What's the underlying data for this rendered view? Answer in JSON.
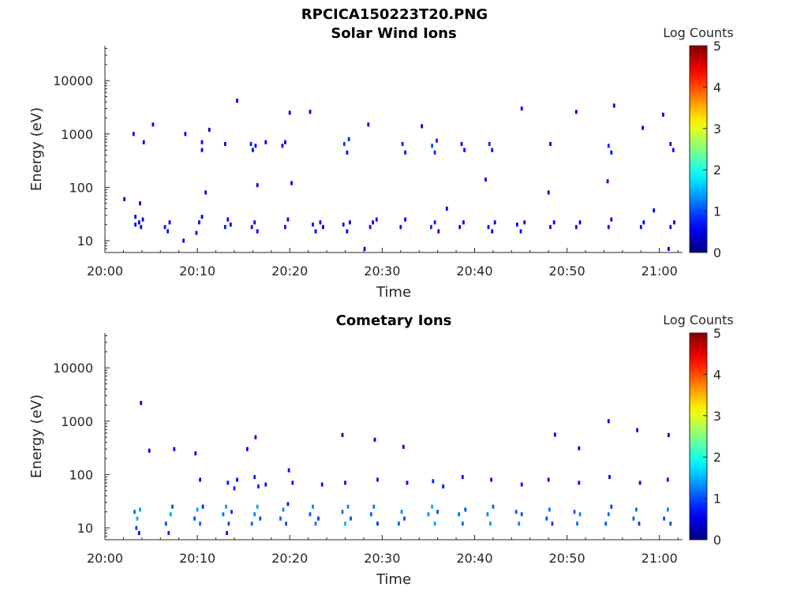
{
  "figure_title": "RPCICA150223T20.PNG",
  "colorbar": {
    "label": "Log Counts",
    "ticks": [
      "0",
      "1",
      "2",
      "3",
      "4",
      "5"
    ],
    "range": [
      0,
      5
    ],
    "colormap": "jet"
  },
  "chart_data": [
    {
      "type": "heatmap",
      "title": "Solar Wind Ions",
      "xlabel": "Time",
      "ylabel": "Energy (eV)",
      "x_ticks": [
        "20:00",
        "20:10",
        "20:20",
        "20:30",
        "20:40",
        "20:50",
        "21:00"
      ],
      "x_tick_minutes": [
        0,
        10,
        20,
        30,
        40,
        50,
        60
      ],
      "xlim_minutes": [
        0,
        62.5
      ],
      "y_ticks": [
        "10",
        "100",
        "1000",
        "10000"
      ],
      "y_tick_values": [
        10,
        100,
        1000,
        10000
      ],
      "yscale": "log",
      "ylim": [
        6,
        45000
      ],
      "grid": false,
      "points": [
        [
          3.3,
          28,
          0.6
        ],
        [
          3.3,
          20,
          0.6
        ],
        [
          3.7,
          22,
          0.6
        ],
        [
          3.9,
          18,
          0.6
        ],
        [
          4.1,
          25,
          0.5
        ],
        [
          6.5,
          18,
          0.7
        ],
        [
          6.8,
          15,
          0.7
        ],
        [
          7.0,
          22,
          0.6
        ],
        [
          8.5,
          10,
          0.6
        ],
        [
          9.9,
          14,
          0.7
        ],
        [
          10.2,
          22,
          0.6
        ],
        [
          10.5,
          28,
          0.6
        ],
        [
          13.0,
          18,
          0.7
        ],
        [
          13.3,
          25,
          0.6
        ],
        [
          13.6,
          20,
          0.6
        ],
        [
          15.9,
          18,
          0.7
        ],
        [
          16.2,
          22,
          0.6
        ],
        [
          16.5,
          15,
          0.6
        ],
        [
          19.5,
          18,
          0.7
        ],
        [
          19.8,
          25,
          0.6
        ],
        [
          22.5,
          20,
          0.7
        ],
        [
          22.8,
          15,
          0.6
        ],
        [
          23.3,
          22,
          0.6
        ],
        [
          23.6,
          18,
          0.6
        ],
        [
          25.8,
          20,
          0.7
        ],
        [
          26.2,
          15,
          0.6
        ],
        [
          26.5,
          22,
          0.6
        ],
        [
          28.7,
          18,
          0.7
        ],
        [
          29.0,
          22,
          0.6
        ],
        [
          29.4,
          25,
          0.6
        ],
        [
          32.0,
          18,
          0.7
        ],
        [
          32.5,
          25,
          0.6
        ],
        [
          35.3,
          18,
          0.8
        ],
        [
          35.7,
          22,
          0.7
        ],
        [
          36.1,
          15,
          0.6
        ],
        [
          38.4,
          18,
          0.7
        ],
        [
          38.8,
          22,
          0.6
        ],
        [
          41.5,
          18,
          0.7
        ],
        [
          41.9,
          15,
          0.6
        ],
        [
          42.2,
          22,
          0.6
        ],
        [
          44.6,
          20,
          0.7
        ],
        [
          45.0,
          15,
          0.6
        ],
        [
          45.4,
          22,
          0.6
        ],
        [
          48.2,
          18,
          0.7
        ],
        [
          48.6,
          22,
          0.6
        ],
        [
          51.0,
          18,
          0.7
        ],
        [
          51.4,
          22,
          0.6
        ],
        [
          54.5,
          18,
          0.7
        ],
        [
          54.8,
          25,
          0.6
        ],
        [
          58.0,
          18,
          0.7
        ],
        [
          58.3,
          22,
          0.6
        ],
        [
          61.2,
          18,
          0.7
        ],
        [
          61.6,
          22,
          0.6
        ],
        [
          10.5,
          700,
          0.6
        ],
        [
          10.5,
          500,
          0.6
        ],
        [
          13.0,
          650,
          0.6
        ],
        [
          15.8,
          650,
          0.8
        ],
        [
          16.3,
          600,
          0.7
        ],
        [
          16.0,
          500,
          0.6
        ],
        [
          19.2,
          600,
          0.7
        ],
        [
          19.5,
          700,
          0.6
        ],
        [
          25.9,
          650,
          0.9
        ],
        [
          26.2,
          450,
          0.7
        ],
        [
          26.4,
          800,
          0.8
        ],
        [
          32.2,
          650,
          0.8
        ],
        [
          32.5,
          450,
          0.7
        ],
        [
          35.4,
          600,
          1.0
        ],
        [
          35.7,
          450,
          0.8
        ],
        [
          35.9,
          750,
          0.8
        ],
        [
          38.6,
          650,
          0.7
        ],
        [
          38.9,
          500,
          0.6
        ],
        [
          41.6,
          650,
          0.8
        ],
        [
          41.9,
          500,
          0.6
        ],
        [
          48.2,
          650,
          0.6
        ],
        [
          54.5,
          600,
          0.8
        ],
        [
          54.8,
          450,
          0.6
        ],
        [
          61.2,
          650,
          0.7
        ],
        [
          61.5,
          500,
          0.6
        ],
        [
          3.1,
          1000,
          0.5
        ],
        [
          4.2,
          700,
          0.5
        ],
        [
          5.2,
          1500,
          0.5
        ],
        [
          8.7,
          1000,
          0.5
        ],
        [
          11.3,
          1200,
          0.5
        ],
        [
          14.3,
          4200,
          0.5
        ],
        [
          17.4,
          700,
          0.5
        ],
        [
          20.0,
          2500,
          0.5
        ],
        [
          22.2,
          2600,
          0.5
        ],
        [
          28.5,
          1500,
          0.5
        ],
        [
          34.3,
          1400,
          0.5
        ],
        [
          45.1,
          3000,
          0.5
        ],
        [
          51.0,
          2600,
          0.5
        ],
        [
          55.1,
          3400,
          0.5
        ],
        [
          58.2,
          1300,
          0.5
        ],
        [
          60.4,
          2300,
          0.5
        ],
        [
          2.1,
          60,
          0.5
        ],
        [
          3.8,
          50,
          0.5
        ],
        [
          10.9,
          80,
          0.5
        ],
        [
          16.5,
          110,
          0.5
        ],
        [
          20.2,
          120,
          0.5
        ],
        [
          37.0,
          40,
          0.5
        ],
        [
          41.2,
          140,
          0.5
        ],
        [
          48.0,
          80,
          0.5
        ],
        [
          54.4,
          130,
          0.5
        ],
        [
          59.4,
          37,
          0.5
        ],
        [
          28.1,
          7,
          0.5
        ],
        [
          61.0,
          7,
          0.5
        ]
      ]
    },
    {
      "type": "heatmap",
      "title": "Cometary Ions",
      "xlabel": "Time",
      "ylabel": "Energy (eV)",
      "x_ticks": [
        "20:00",
        "20:10",
        "20:20",
        "20:30",
        "20:40",
        "20:50",
        "21:00"
      ],
      "x_tick_minutes": [
        0,
        10,
        20,
        30,
        40,
        50,
        60
      ],
      "xlim_minutes": [
        0,
        62.5
      ],
      "y_ticks": [
        "10",
        "100",
        "1000",
        "10000"
      ],
      "y_tick_values": [
        10,
        100,
        1000,
        10000
      ],
      "yscale": "log",
      "ylim": [
        6,
        45000
      ],
      "grid": false,
      "points": [
        [
          3.2,
          20,
          1.2
        ],
        [
          3.5,
          15,
          1.5
        ],
        [
          3.8,
          22,
          1.4
        ],
        [
          3.4,
          10,
          0.9
        ],
        [
          3.7,
          8,
          0.7
        ],
        [
          6.6,
          12,
          1.0
        ],
        [
          6.9,
          8,
          0.8
        ],
        [
          7.1,
          18,
          1.4
        ],
        [
          7.3,
          25,
          1.0
        ],
        [
          9.7,
          15,
          1.0
        ],
        [
          10.0,
          22,
          1.4
        ],
        [
          10.3,
          12,
          1.1
        ],
        [
          10.6,
          25,
          0.8
        ],
        [
          12.8,
          18,
          1.2
        ],
        [
          13.1,
          25,
          1.4
        ],
        [
          13.4,
          12,
          1.0
        ],
        [
          13.7,
          20,
          0.9
        ],
        [
          13.2,
          8,
          0.7
        ],
        [
          15.9,
          12,
          1.1
        ],
        [
          16.2,
          18,
          1.3
        ],
        [
          16.5,
          25,
          1.4
        ],
        [
          16.8,
          15,
          1.0
        ],
        [
          19.0,
          15,
          1.1
        ],
        [
          19.3,
          22,
          1.3
        ],
        [
          19.6,
          12,
          1.0
        ],
        [
          19.8,
          28,
          0.8
        ],
        [
          22.2,
          18,
          1.1
        ],
        [
          22.5,
          25,
          1.3
        ],
        [
          22.8,
          12,
          1.2
        ],
        [
          23.1,
          15,
          0.9
        ],
        [
          25.7,
          20,
          1.2
        ],
        [
          26.0,
          12,
          1.5
        ],
        [
          26.3,
          25,
          1.3
        ],
        [
          26.6,
          15,
          1.0
        ],
        [
          28.8,
          18,
          1.1
        ],
        [
          29.1,
          25,
          1.2
        ],
        [
          29.5,
          12,
          0.9
        ],
        [
          31.8,
          12,
          1.1
        ],
        [
          32.1,
          20,
          1.3
        ],
        [
          32.4,
          15,
          1.0
        ],
        [
          35.0,
          18,
          1.3
        ],
        [
          35.4,
          25,
          1.5
        ],
        [
          35.7,
          12,
          1.4
        ],
        [
          36.0,
          20,
          1.0
        ],
        [
          38.3,
          18,
          1.2
        ],
        [
          38.7,
          12,
          1.1
        ],
        [
          39.0,
          22,
          1.0
        ],
        [
          41.4,
          18,
          1.3
        ],
        [
          41.7,
          12,
          1.4
        ],
        [
          42.0,
          25,
          1.1
        ],
        [
          44.5,
          20,
          1.1
        ],
        [
          44.8,
          12,
          1.3
        ],
        [
          45.1,
          18,
          1.0
        ],
        [
          47.8,
          15,
          1.0
        ],
        [
          48.1,
          22,
          1.2
        ],
        [
          48.4,
          12,
          0.9
        ],
        [
          50.8,
          20,
          1.1
        ],
        [
          51.1,
          12,
          1.2
        ],
        [
          51.4,
          18,
          1.3
        ],
        [
          54.2,
          12,
          1.0
        ],
        [
          54.5,
          18,
          1.2
        ],
        [
          54.8,
          25,
          0.9
        ],
        [
          57.2,
          15,
          1.1
        ],
        [
          57.5,
          22,
          1.2
        ],
        [
          57.8,
          12,
          0.9
        ],
        [
          60.5,
          15,
          1.0
        ],
        [
          60.9,
          22,
          1.3
        ],
        [
          61.2,
          12,
          1.0
        ],
        [
          10.3,
          80,
          0.7
        ],
        [
          13.3,
          70,
          0.7
        ],
        [
          14.0,
          55,
          0.8
        ],
        [
          14.3,
          80,
          0.7
        ],
        [
          16.2,
          90,
          0.8
        ],
        [
          16.6,
          60,
          0.8
        ],
        [
          17.4,
          65,
          0.7
        ],
        [
          19.9,
          120,
          0.7
        ],
        [
          20.3,
          70,
          0.7
        ],
        [
          23.5,
          65,
          0.7
        ],
        [
          26.0,
          70,
          0.7
        ],
        [
          29.5,
          80,
          0.7
        ],
        [
          32.7,
          70,
          0.7
        ],
        [
          35.5,
          75,
          0.8
        ],
        [
          36.6,
          60,
          0.7
        ],
        [
          38.7,
          90,
          0.7
        ],
        [
          41.8,
          80,
          0.7
        ],
        [
          45.1,
          65,
          0.7
        ],
        [
          48.0,
          80,
          0.7
        ],
        [
          51.3,
          70,
          0.7
        ],
        [
          54.6,
          90,
          0.7
        ],
        [
          57.9,
          70,
          0.7
        ],
        [
          60.9,
          80,
          0.7
        ],
        [
          3.9,
          2200,
          0.5
        ],
        [
          4.8,
          280,
          0.5
        ],
        [
          7.5,
          300,
          0.5
        ],
        [
          9.8,
          250,
          0.5
        ],
        [
          15.4,
          300,
          0.5
        ],
        [
          16.3,
          500,
          0.5
        ],
        [
          25.7,
          550,
          0.5
        ],
        [
          29.2,
          450,
          0.5
        ],
        [
          32.3,
          330,
          0.5
        ],
        [
          48.7,
          560,
          0.5
        ],
        [
          51.3,
          310,
          0.5
        ],
        [
          54.5,
          1000,
          0.5
        ],
        [
          57.6,
          680,
          0.5
        ],
        [
          61.0,
          550,
          0.5
        ]
      ]
    }
  ]
}
